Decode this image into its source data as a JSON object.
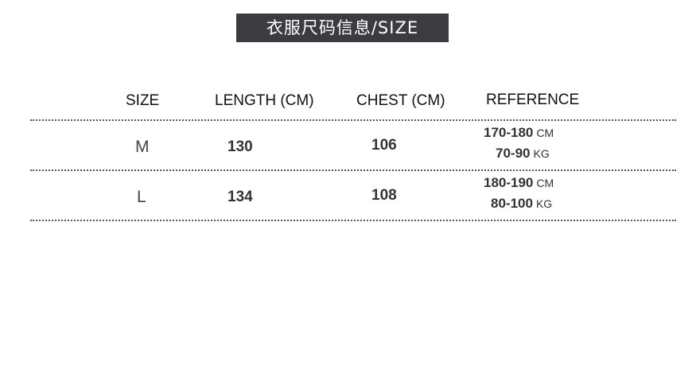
{
  "title": "衣服尺码信息/SIZE",
  "headers": [
    "SIZE",
    "LENGTH (CM)",
    "CHEST (CM)",
    "REFERENCE"
  ],
  "rows": [
    {
      "size": "M",
      "length": "130",
      "chest": "106",
      "height": "170-180",
      "height_unit": "CM",
      "weight": "70-90",
      "weight_unit": "KG"
    },
    {
      "size": "L",
      "length": "134",
      "chest": "108",
      "height": "180-190",
      "height_unit": "CM",
      "weight": "80-100",
      "weight_unit": "KG"
    }
  ]
}
